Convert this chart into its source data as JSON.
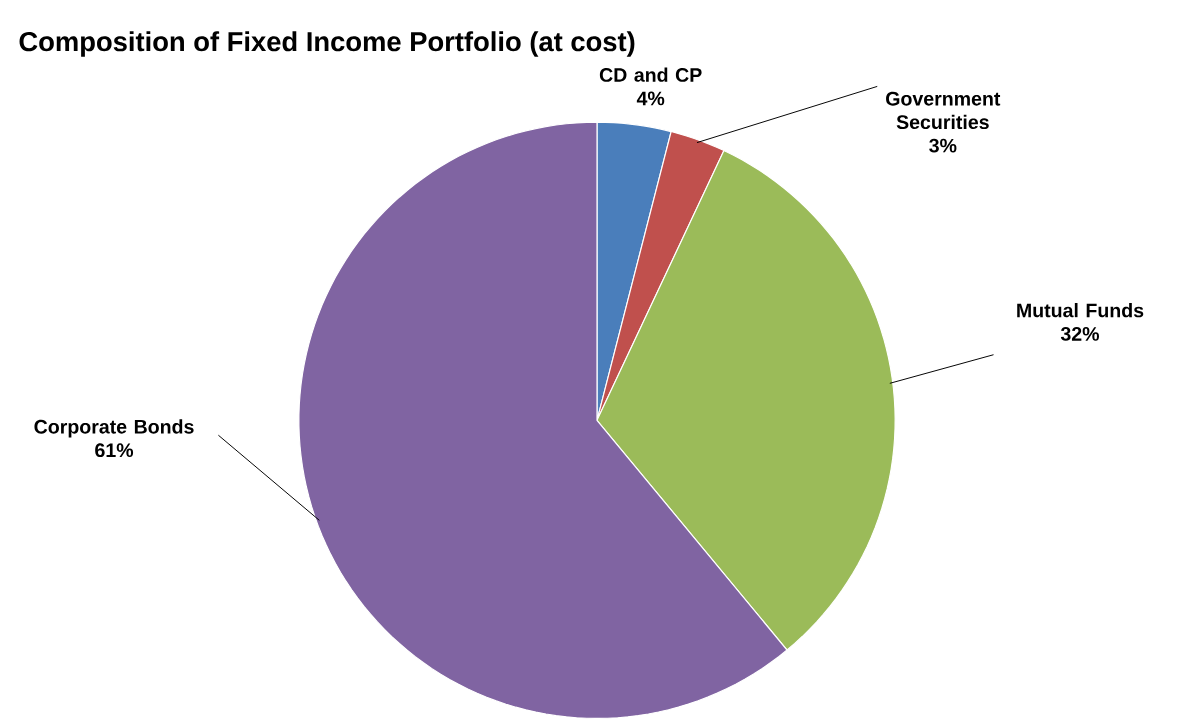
{
  "chart_data": {
    "type": "pie",
    "title": "Composition of Fixed Income Portfolio (at cost)",
    "categories": [
      "CD and CP",
      "Government Securities",
      "Mutual Funds",
      "Corporate Bonds"
    ],
    "values": [
      4,
      3,
      32,
      61
    ],
    "value_labels": [
      "4%",
      "3%",
      "32%",
      "61%"
    ],
    "colors": [
      "#4a7ebb",
      "#c0504d",
      "#9bbb59",
      "#8064a2"
    ]
  }
}
